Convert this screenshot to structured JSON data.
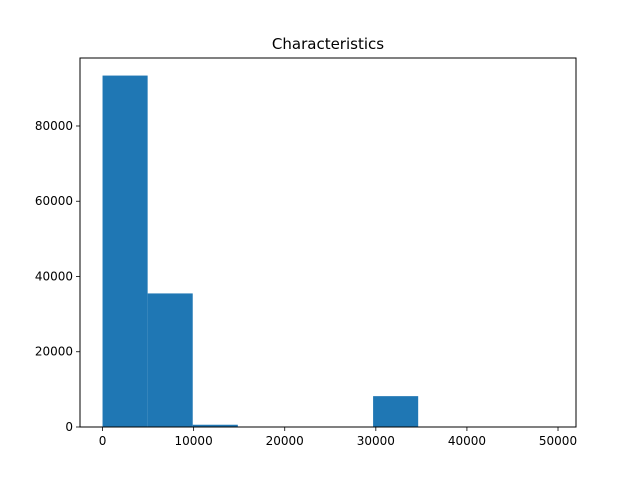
{
  "chart_data": {
    "type": "bar",
    "title": "Characteristics",
    "xlabel": "",
    "ylabel": "",
    "bins": [
      {
        "x0": 0,
        "x1": 4950,
        "count": 93400
      },
      {
        "x0": 4950,
        "x1": 9900,
        "count": 35500
      },
      {
        "x0": 9900,
        "x1": 14850,
        "count": 600
      },
      {
        "x0": 14850,
        "x1": 19800,
        "count": 0
      },
      {
        "x0": 19800,
        "x1": 24750,
        "count": 0
      },
      {
        "x0": 24750,
        "x1": 29700,
        "count": 0
      },
      {
        "x0": 29700,
        "x1": 34650,
        "count": 8200
      },
      {
        "x0": 34650,
        "x1": 39600,
        "count": 0
      },
      {
        "x0": 39600,
        "x1": 44550,
        "count": 0
      },
      {
        "x0": 44550,
        "x1": 49500,
        "count": 0
      }
    ],
    "xlim": [
      -2475,
      51975
    ],
    "ylim": [
      0,
      98070
    ],
    "xticks": [
      0,
      10000,
      20000,
      30000,
      40000,
      50000
    ],
    "xtick_labels": [
      "0",
      "10000",
      "20000",
      "30000",
      "40000",
      "50000"
    ],
    "yticks": [
      0,
      20000,
      40000,
      60000,
      80000
    ],
    "ytick_labels": [
      "0",
      "20000",
      "40000",
      "60000",
      "80000"
    ],
    "grid": false,
    "bar_color": "#1f77b4"
  }
}
